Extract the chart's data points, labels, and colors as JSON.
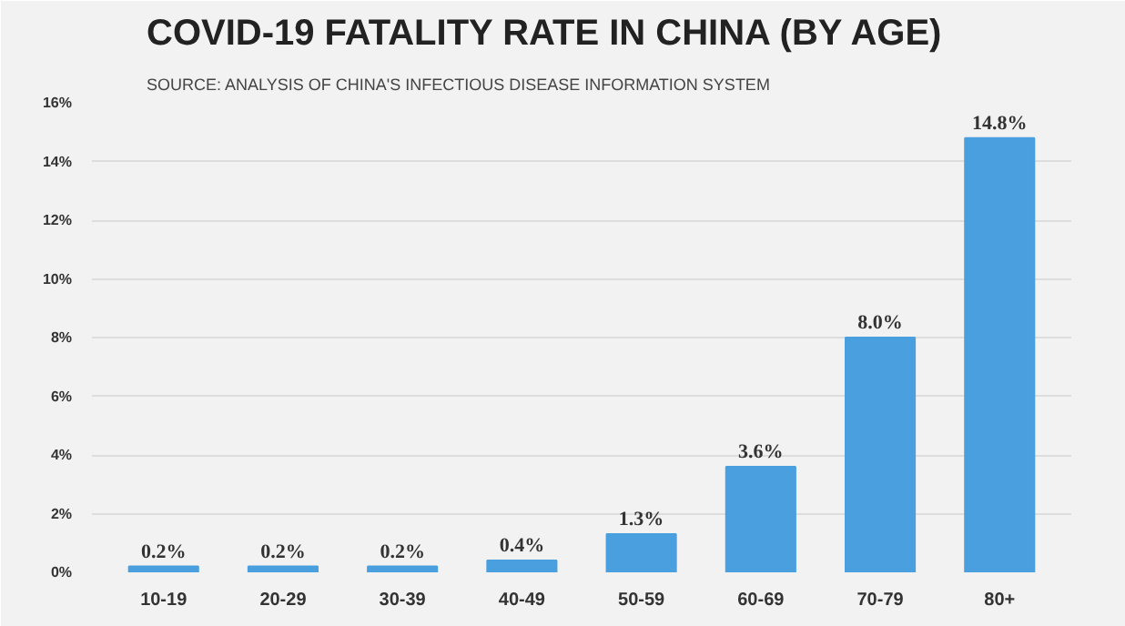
{
  "chart_data": {
    "type": "bar",
    "title": "COVID-19 FATALITY RATE IN CHINA (BY AGE)",
    "subtitle": "SOURCE: ANALYSIS OF CHINA'S INFECTIOUS DISEASE INFORMATION SYSTEM",
    "categories": [
      "10-19",
      "20-29",
      "30-39",
      "40-49",
      "50-59",
      "60-69",
      "70-79",
      "80+"
    ],
    "values": [
      0.2,
      0.2,
      0.2,
      0.4,
      1.3,
      3.6,
      8.0,
      14.8
    ],
    "value_labels": [
      "0.2%",
      "0.2%",
      "0.2%",
      "0.4%",
      "1.3%",
      "3.6%",
      "8.0%",
      "14.8%"
    ],
    "color": "#4a9fdf",
    "ylim": [
      0,
      16
    ],
    "yticks": [
      {
        "value": 0,
        "label": "0%"
      },
      {
        "value": 2,
        "label": "2%"
      },
      {
        "value": 4,
        "label": "4%"
      },
      {
        "value": 6,
        "label": "6%"
      },
      {
        "value": 8,
        "label": "8%"
      },
      {
        "value": 10,
        "label": "10%"
      },
      {
        "value": 12,
        "label": "12%"
      },
      {
        "value": 14,
        "label": "14%"
      },
      {
        "value": 16,
        "label": "16%"
      }
    ],
    "grid": "y"
  }
}
